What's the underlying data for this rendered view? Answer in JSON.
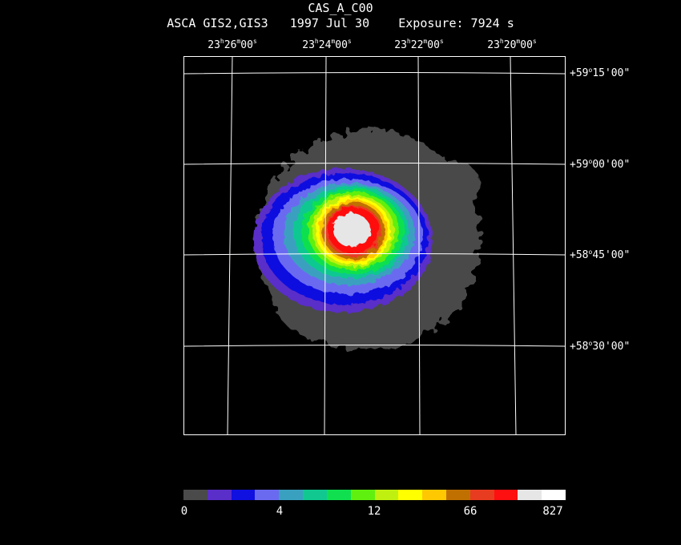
{
  "header": {
    "title": "CAS_A_C00",
    "subtitle": "ASCA GIS2,GIS3   1997 Jul 30    Exposure: 7924 s"
  },
  "ra_labels": [
    {
      "h": "23",
      "m": "26",
      "s": "00"
    },
    {
      "h": "23",
      "m": "24",
      "s": "00"
    },
    {
      "h": "23",
      "m": "22",
      "s": "00"
    },
    {
      "h": "23",
      "m": "20",
      "s": "00"
    }
  ],
  "dec_labels": [
    {
      "d": "+59",
      "m": "15",
      "s": "00"
    },
    {
      "d": "+59",
      "m": "00",
      "s": "00"
    },
    {
      "d": "+58",
      "m": "45",
      "s": "00"
    },
    {
      "d": "+58",
      "m": "30",
      "s": "00"
    }
  ],
  "colorbar": {
    "colors": [
      "#4a4a4a",
      "#5a2ec8",
      "#1010e0",
      "#6a6af0",
      "#3aa0c0",
      "#10c890",
      "#10e050",
      "#60f010",
      "#c0f010",
      "#ffff00",
      "#ffc800",
      "#c07000",
      "#e83c20",
      "#ff1010",
      "#e6e6e6",
      "#ffffff"
    ],
    "labels": [
      "0",
      "4",
      "12",
      "66",
      "827"
    ]
  }
}
